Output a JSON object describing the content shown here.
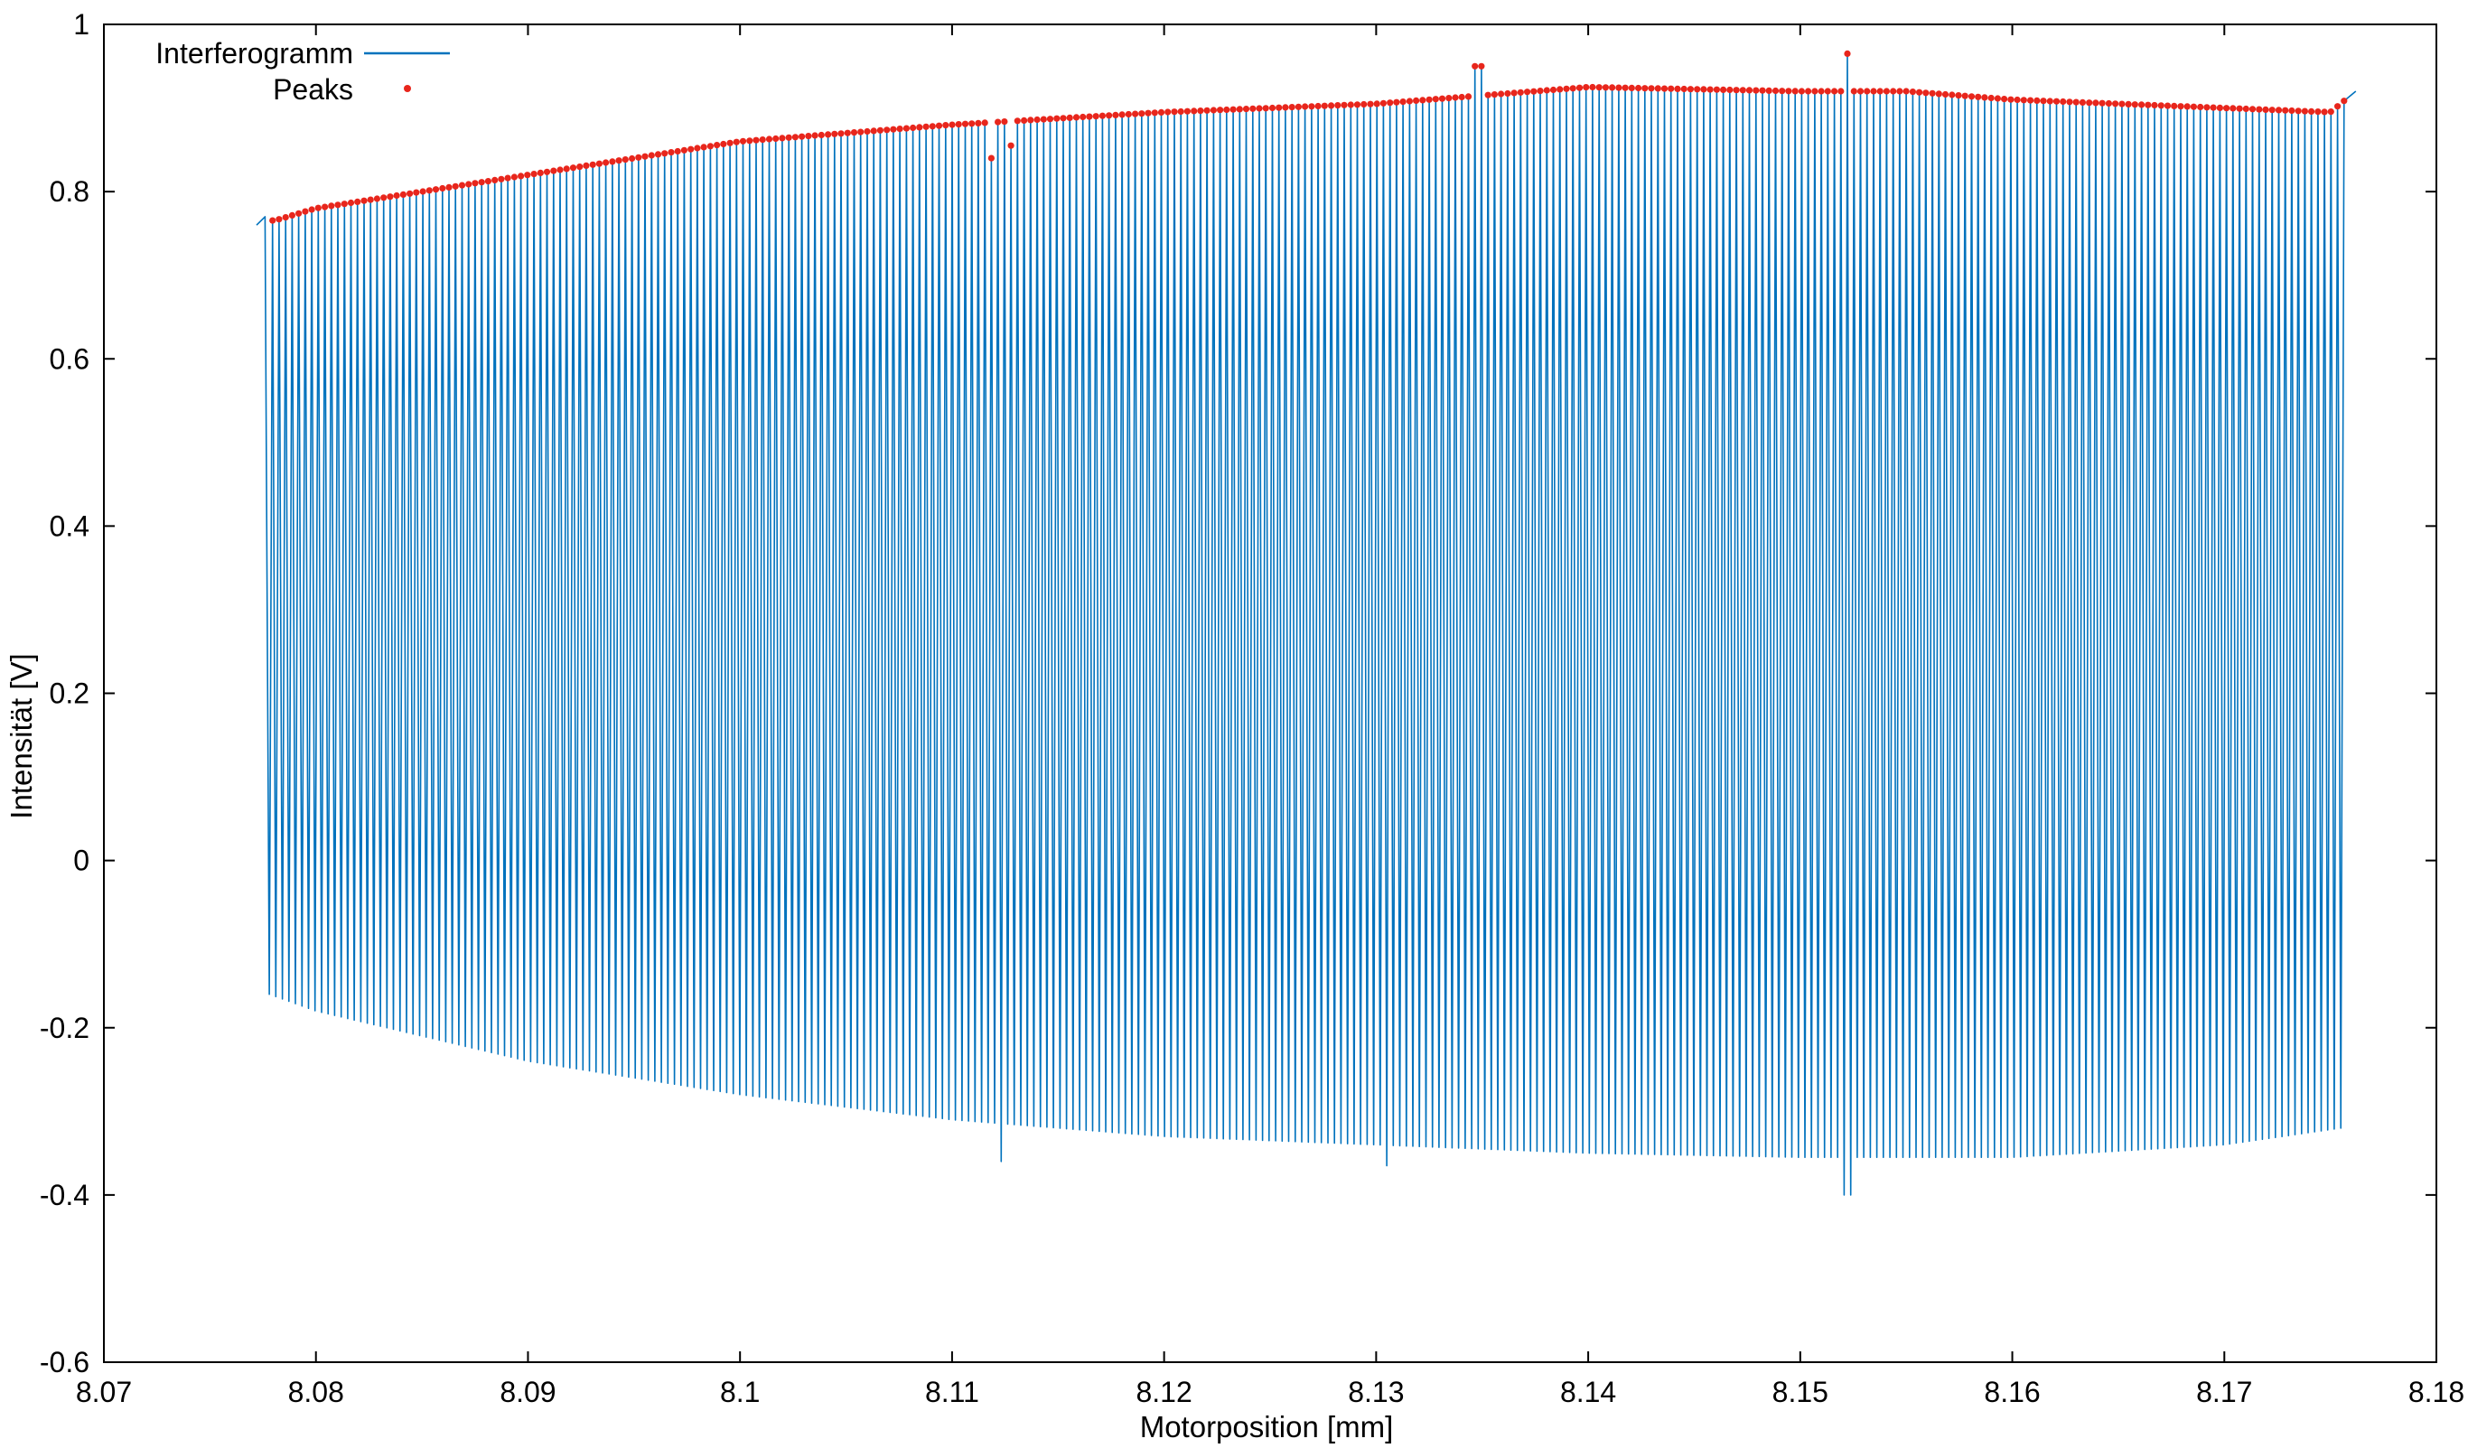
{
  "chart_data": {
    "type": "line",
    "title": "",
    "xlabel": "Motorposition [mm]",
    "ylabel": "Intensität [V]",
    "xlim": [
      8.07,
      8.18
    ],
    "ylim": [
      -0.6,
      1.0
    ],
    "x_ticks": [
      8.07,
      8.08,
      8.09,
      8.1,
      8.11,
      8.12,
      8.13,
      8.14,
      8.15,
      8.16,
      8.17,
      8.18
    ],
    "x_tick_labels": [
      "8.07",
      "8.08",
      "8.09",
      "8.1",
      "8.11",
      "8.12",
      "8.13",
      "8.14",
      "8.15",
      "8.16",
      "8.17",
      "8.18"
    ],
    "y_ticks": [
      -0.6,
      -0.4,
      -0.2,
      0,
      0.2,
      0.4,
      0.6,
      0.8,
      1.0
    ],
    "y_tick_labels": [
      "-0.6",
      "-0.4",
      "-0.2",
      "0",
      "0.2",
      "0.4",
      "0.6",
      "0.8",
      "1"
    ],
    "grid": false,
    "legend_position": "top-left",
    "series": [
      {
        "name": "Interferogramm",
        "kind": "line",
        "color": "#0072bd",
        "description_of_signal": "rapid oscillation between envelope_max and envelope_min",
        "x_start": 8.0772,
        "x_end": 8.1762,
        "num_fringes": 318,
        "envelope_max": {
          "x": [
            8.0772,
            8.0775,
            8.078,
            8.08,
            8.09,
            8.1,
            8.11,
            8.12,
            8.13,
            8.14,
            8.15,
            8.155,
            8.16,
            8.17,
            8.175,
            8.1762
          ],
          "y": [
            0.76,
            0.77,
            0.765,
            0.78,
            0.82,
            0.86,
            0.88,
            0.895,
            0.905,
            0.925,
            0.92,
            0.92,
            0.91,
            0.9,
            0.895,
            0.92
          ]
        },
        "envelope_min": {
          "x": [
            8.0772,
            8.0778,
            8.08,
            8.09,
            8.1,
            8.11,
            8.12,
            8.13,
            8.14,
            8.15,
            8.16,
            8.17,
            8.1755
          ],
          "y": [
            0.76,
            -0.16,
            -0.18,
            -0.24,
            -0.28,
            -0.31,
            -0.33,
            -0.34,
            -0.35,
            -0.355,
            -0.355,
            -0.34,
            -0.32
          ]
        },
        "notable_minima": [
          {
            "x": 8.1122,
            "y": -0.36
          },
          {
            "x": 8.1305,
            "y": -0.365
          },
          {
            "x": 8.1522,
            "y": -0.4
          }
        ],
        "notable_maxima": [
          {
            "x": 8.1348,
            "y": 0.95
          },
          {
            "x": 8.1522,
            "y": 0.965
          }
        ]
      },
      {
        "name": "Peaks",
        "kind": "scatter",
        "color": "#e8261c",
        "description_of_points": "one red dot at the top of each fringe maximum, following envelope_max",
        "count": 318,
        "dips": [
          {
            "x": 8.1118,
            "y": 0.84
          },
          {
            "x": 8.1128,
            "y": 0.855
          }
        ]
      }
    ]
  }
}
